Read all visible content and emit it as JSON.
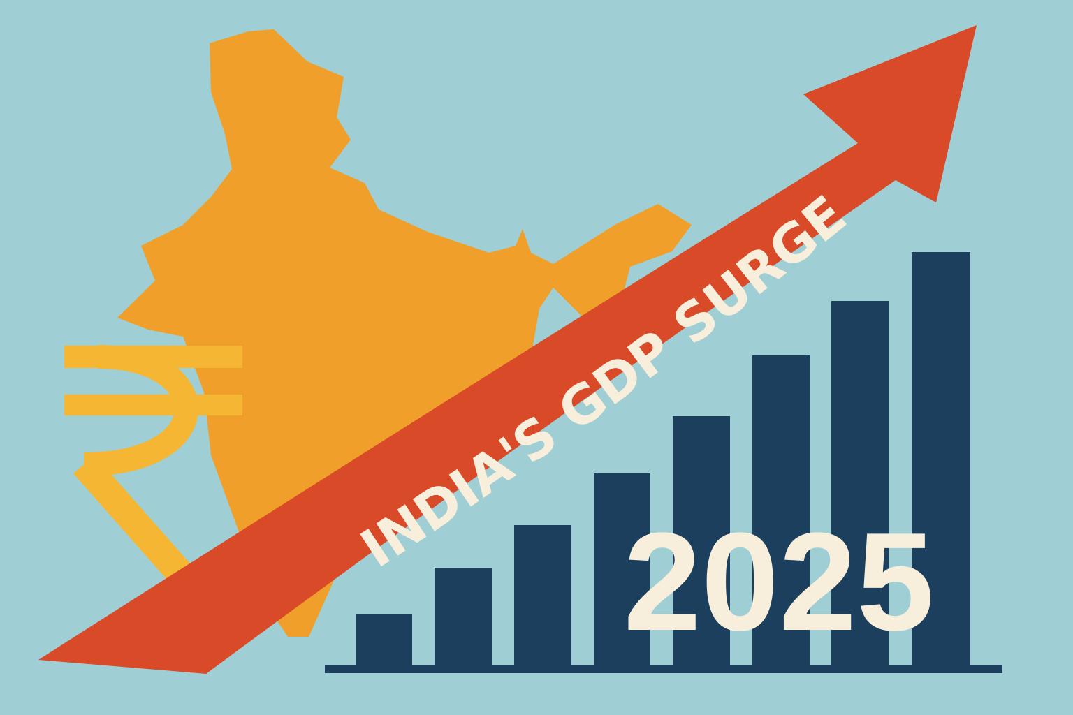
{
  "banner": {
    "text": "INDIA'S GDP SURGE"
  },
  "year": {
    "text": "2025"
  }
}
